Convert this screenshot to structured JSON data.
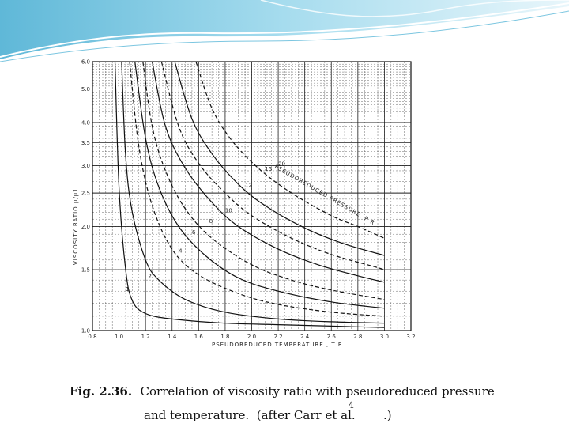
{
  "caption": {
    "number": "Fig. 2.36.  ",
    "line1": "Correlation of viscosity ratio with pseudoreduced pressure",
    "line2": "and temperature.  (after Carr et al.",
    "ref": "4",
    "end": ".)"
  },
  "chart_data": {
    "type": "line",
    "xlabel": "PSEUDOREDUCED  TEMPERATURE , T R",
    "ylabel": "VISCOSITY  RATIO  μ/μ1",
    "series_label": "PSEUDOREDUCED PRESSURE, P R",
    "xlim": [
      0.8,
      3.2
    ],
    "ylim": [
      1.0,
      6.0
    ],
    "xticks": [
      {
        "v": 0.8,
        "label": "0.8"
      },
      {
        "v": 1.0,
        "label": "1.0"
      },
      {
        "v": 1.2,
        "label": "1.2"
      },
      {
        "v": 1.4,
        "label": "1.4"
      },
      {
        "v": 1.6,
        "label": "1.6"
      },
      {
        "v": 1.8,
        "label": "1.8"
      },
      {
        "v": 2.0,
        "label": "2.0"
      },
      {
        "v": 2.2,
        "label": "2.2"
      },
      {
        "v": 2.4,
        "label": "2.4"
      },
      {
        "v": 2.6,
        "label": "2.6"
      },
      {
        "v": 2.8,
        "label": "2.8"
      },
      {
        "v": 3.0,
        "label": "3.0"
      },
      {
        "v": 3.2,
        "label": "3.2"
      }
    ],
    "yticks": [
      {
        "v": 1.0,
        "label": "1.0"
      },
      {
        "v": 1.5,
        "label": "1.5"
      },
      {
        "v": 2.0,
        "label": "2.0"
      },
      {
        "v": 2.5,
        "label": "2.5"
      },
      {
        "v": 3.0,
        "label": "3.0"
      },
      {
        "v": 3.5,
        "label": "3.5"
      },
      {
        "v": 4.0,
        "label": "4.0"
      },
      {
        "v": 5.0,
        "label": "5.0"
      },
      {
        "v": 6.0,
        "label": "6.0"
      }
    ],
    "grid": true,
    "series": [
      {
        "name": "1",
        "dashed": false,
        "x": [
          0.97,
          1.0,
          1.05,
          1.1,
          1.2,
          1.4,
          1.8,
          2.2,
          2.6,
          3.0
        ],
        "y": [
          6.0,
          2.6,
          1.5,
          1.22,
          1.12,
          1.08,
          1.05,
          1.04,
          1.03,
          1.02
        ],
        "label_at": [
          1.05,
          1.3
        ]
      },
      {
        "name": "2",
        "dashed": false,
        "x": [
          1.02,
          1.05,
          1.1,
          1.2,
          1.3,
          1.5,
          1.8,
          2.2,
          2.6,
          3.0
        ],
        "y": [
          6.0,
          3.2,
          2.2,
          1.6,
          1.4,
          1.23,
          1.13,
          1.08,
          1.06,
          1.05
        ],
        "label_at": [
          1.22,
          1.42
        ]
      },
      {
        "name": "4",
        "dashed": true,
        "x": [
          1.08,
          1.15,
          1.25,
          1.4,
          1.6,
          1.9,
          2.2,
          2.6,
          3.0
        ],
        "y": [
          6.0,
          3.4,
          2.3,
          1.72,
          1.45,
          1.28,
          1.19,
          1.13,
          1.1
        ],
        "label_at": [
          1.45,
          1.68
        ]
      },
      {
        "name": "6",
        "dashed": false,
        "x": [
          1.12,
          1.2,
          1.3,
          1.45,
          1.65,
          1.9,
          2.2,
          2.6,
          3.0
        ],
        "y": [
          6.0,
          3.6,
          2.6,
          2.0,
          1.65,
          1.42,
          1.3,
          1.21,
          1.16
        ],
        "label_at": [
          1.55,
          1.9
        ]
      },
      {
        "name": "8",
        "dashed": true,
        "x": [
          1.18,
          1.25,
          1.35,
          1.5,
          1.7,
          2.0,
          2.3,
          2.6,
          3.0
        ],
        "y": [
          6.0,
          3.9,
          2.9,
          2.25,
          1.85,
          1.55,
          1.4,
          1.31,
          1.23
        ],
        "label_at": [
          1.68,
          2.05
        ]
      },
      {
        "name": "10",
        "dashed": false,
        "x": [
          1.25,
          1.35,
          1.5,
          1.7,
          1.9,
          2.2,
          2.5,
          2.8,
          3.0
        ],
        "y": [
          6.0,
          3.9,
          2.95,
          2.35,
          2.0,
          1.72,
          1.55,
          1.44,
          1.38
        ],
        "label_at": [
          1.8,
          2.2
        ]
      },
      {
        "name": "12",
        "dashed": true,
        "x": [
          1.32,
          1.45,
          1.6,
          1.8,
          2.0,
          2.3,
          2.6,
          2.9,
          3.0
        ],
        "y": [
          6.0,
          3.9,
          3.05,
          2.5,
          2.15,
          1.85,
          1.66,
          1.54,
          1.5
        ],
        "label_at": [
          1.95,
          2.6
        ]
      },
      {
        "name": "15",
        "dashed": false,
        "x": [
          1.42,
          1.55,
          1.7,
          1.9,
          2.1,
          2.4,
          2.7,
          3.0
        ],
        "y": [
          6.0,
          4.1,
          3.25,
          2.65,
          2.3,
          1.98,
          1.78,
          1.65
        ],
        "label_at": [
          2.1,
          2.9
        ]
      },
      {
        "name": "20",
        "dashed": true,
        "x": [
          1.58,
          1.7,
          1.85,
          2.05,
          2.3,
          2.6,
          2.8,
          3.0
        ],
        "y": [
          6.0,
          4.4,
          3.55,
          2.95,
          2.5,
          2.15,
          2.0,
          1.85
        ],
        "label_at": [
          2.2,
          3.0
        ]
      }
    ]
  }
}
